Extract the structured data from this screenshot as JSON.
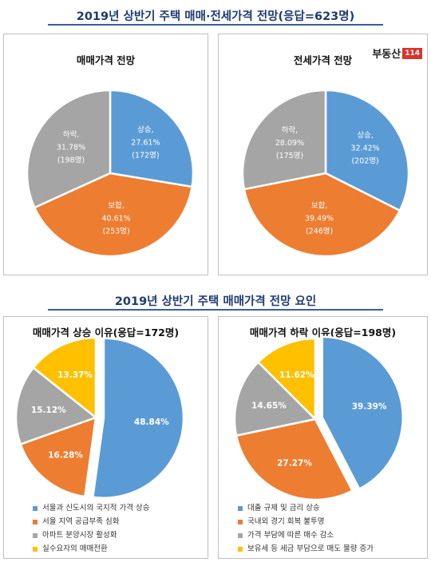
{
  "titles": {
    "main": "2019년 상반기 주택 매매·전세가격 전망(응답=623명)",
    "factors": "2019년 상반기 주택 매매가격 전망 요인"
  },
  "logo": {
    "text": "부동산",
    "num": "114"
  },
  "colors": {
    "up": "#5b9bd5",
    "flat": "#ed7d31",
    "down": "#a5a5a5",
    "other": "#ffc000"
  },
  "chart_data": [
    {
      "type": "pie",
      "title": "매매가격 전망",
      "slices": [
        {
          "label": "상승,",
          "pct": "27.61%",
          "count": "(172명)",
          "value": 27.61,
          "color": "#5b9bd5"
        },
        {
          "label": "보합,",
          "pct": "40.61%",
          "count": "(253명)",
          "value": 40.61,
          "color": "#ed7d31"
        },
        {
          "label": "하락,",
          "pct": "31.78%",
          "count": "(198명)",
          "value": 31.78,
          "color": "#a5a5a5"
        }
      ]
    },
    {
      "type": "pie",
      "title": "전세가격 전망",
      "slices": [
        {
          "label": "상승,",
          "pct": "32.42%",
          "count": "(202명)",
          "value": 32.42,
          "color": "#5b9bd5"
        },
        {
          "label": "보합,",
          "pct": "39.49%",
          "count": "(246명)",
          "value": 39.49,
          "color": "#ed7d31"
        },
        {
          "label": "하락,",
          "pct": "28.09%",
          "count": "(175명)",
          "value": 28.09,
          "color": "#a5a5a5"
        }
      ]
    },
    {
      "type": "pie",
      "title": "매매가격 상승 이유(응답=172명)",
      "slices": [
        {
          "legend": "서울과 신도시의 국지적 가격 상승",
          "pct": "48.84%",
          "value": 48.84,
          "color": "#5b9bd5"
        },
        {
          "legend": "서울 지역 공급부족 심화",
          "pct": "16.28%",
          "value": 16.28,
          "color": "#ed7d31"
        },
        {
          "legend": "아파트 분양시장 활성화",
          "pct": "15.12%",
          "value": 15.12,
          "color": "#a5a5a5"
        },
        {
          "legend": "실수요자의 매매전환",
          "pct": "13.37%",
          "value": 13.37,
          "color": "#ffc000"
        }
      ]
    },
    {
      "type": "pie",
      "title": "매매가격 하락 이유(응답=198명)",
      "slices": [
        {
          "legend": "대출 규제 및 금리 상승",
          "pct": "39.39%",
          "value": 39.39,
          "color": "#5b9bd5"
        },
        {
          "legend": "국내외 경기 회복 불투명",
          "pct": "27.27%",
          "value": 27.27,
          "color": "#ed7d31"
        },
        {
          "legend": "가격 부담에 따른 매수 감소",
          "pct": "14.65%",
          "value": 14.65,
          "color": "#a5a5a5"
        },
        {
          "legend": "보유세 등 세금 부담으로 매도 물량 증가",
          "pct": "11.62%",
          "value": 11.62,
          "color": "#ffc000"
        }
      ]
    }
  ]
}
